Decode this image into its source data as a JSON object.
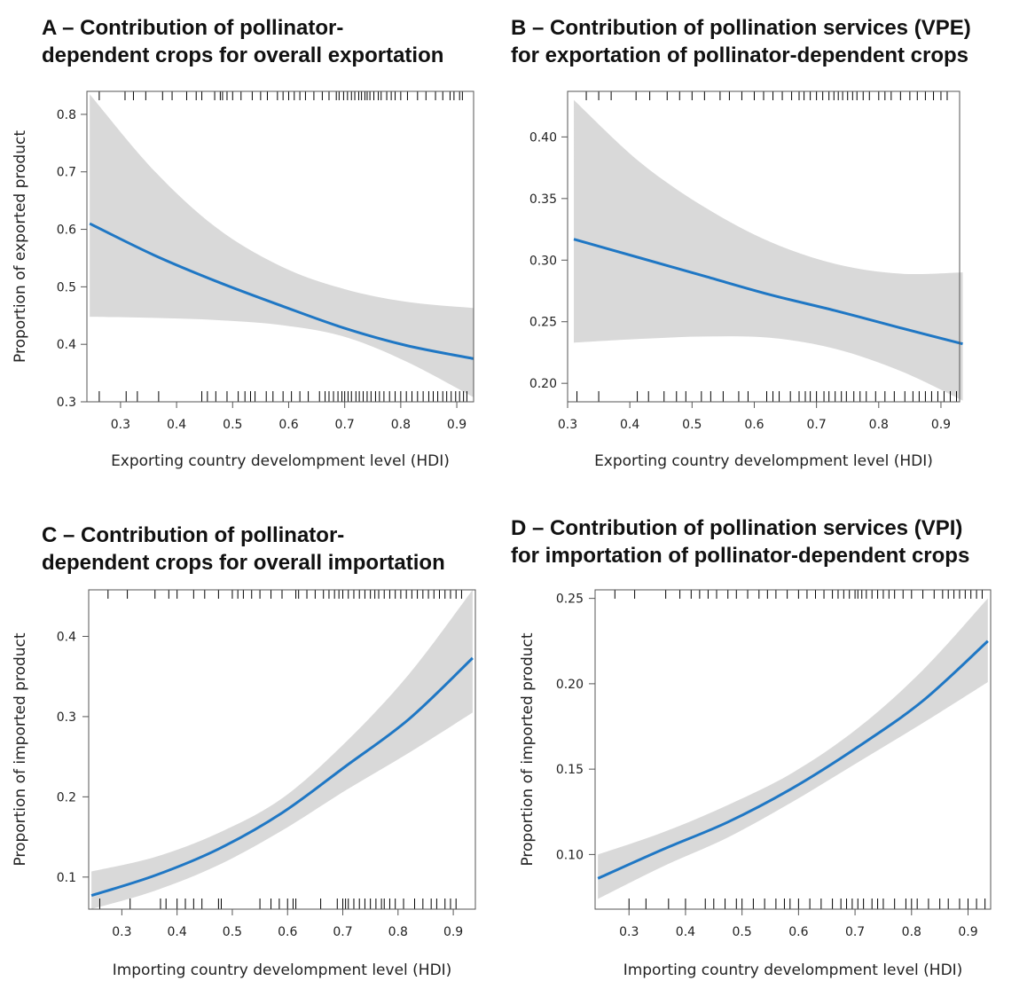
{
  "charts": [
    {
      "id": "A",
      "title_line1": "A – Contribution of pollinator-",
      "title_line2": "dependent crops for overall exportation",
      "chart_data": {
        "type": "line",
        "xlabel": "Exporting country develompment level (HDI)",
        "ylabel": "Proportion of exported product",
        "xlim": [
          0.24,
          0.93
        ],
        "ylim": [
          0.3,
          0.84
        ],
        "x_ticks": [
          "0.3",
          "0.4",
          "0.5",
          "0.6",
          "0.7",
          "0.8",
          "0.9"
        ],
        "y_ticks": [
          "0.3",
          "0.4",
          "0.5",
          "0.6",
          "0.7",
          "0.8"
        ],
        "series": [
          {
            "x": [
              0.245,
              0.36,
              0.475,
              0.59,
              0.7,
              0.81,
              0.93
            ],
            "y": [
              0.61,
              0.555,
              0.508,
              0.466,
              0.428,
              0.398,
              0.375
            ],
            "lower": [
              0.448,
              0.446,
              0.442,
              0.433,
              0.413,
              0.37,
              0.308
            ],
            "upper": [
              0.835,
              0.702,
              0.6,
              0.534,
              0.496,
              0.474,
              0.463
            ]
          }
        ],
        "rug_top": [
          0.262,
          0.308,
          0.323,
          0.345,
          0.375,
          0.392,
          0.418,
          0.435,
          0.445,
          0.468,
          0.478,
          0.482,
          0.49,
          0.5,
          0.515,
          0.535,
          0.55,
          0.562,
          0.58,
          0.59,
          0.6,
          0.61,
          0.62,
          0.63,
          0.645,
          0.66,
          0.672,
          0.685,
          0.69,
          0.698,
          0.705,
          0.712,
          0.718,
          0.725,
          0.73,
          0.736,
          0.74,
          0.745,
          0.752,
          0.76,
          0.765,
          0.775,
          0.783,
          0.79,
          0.8,
          0.812,
          0.83,
          0.845,
          0.862,
          0.875,
          0.888,
          0.895,
          0.905,
          0.91
        ],
        "rug_bottom": [
          0.262,
          0.31,
          0.33,
          0.368,
          0.445,
          0.455,
          0.47,
          0.49,
          0.51,
          0.522,
          0.532,
          0.54,
          0.56,
          0.572,
          0.59,
          0.605,
          0.62,
          0.635,
          0.655,
          0.665,
          0.672,
          0.68,
          0.688,
          0.695,
          0.7,
          0.706,
          0.712,
          0.72,
          0.726,
          0.733,
          0.74,
          0.747,
          0.755,
          0.762,
          0.77,
          0.78,
          0.79,
          0.8,
          0.81,
          0.82,
          0.83,
          0.84,
          0.85,
          0.858,
          0.866,
          0.875,
          0.882,
          0.89,
          0.898,
          0.905,
          0.912,
          0.918
        ]
      }
    },
    {
      "id": "B",
      "title_line1": "B – Contribution of pollination services (VPE)",
      "title_line2": "for exportation of pollinator-dependent crops",
      "chart_data": {
        "type": "line",
        "xlabel": "Exporting country develompment level (HDI)",
        "ylabel": "",
        "xlim": [
          0.3,
          0.93
        ],
        "ylim": [
          0.185,
          0.437
        ],
        "x_ticks": [
          "0.3",
          "0.4",
          "0.5",
          "0.6",
          "0.7",
          "0.8",
          "0.9"
        ],
        "y_ticks": [
          "0.20",
          "0.25",
          "0.30",
          "0.35",
          "0.40"
        ],
        "series": [
          {
            "x": [
              0.31,
              0.415,
              0.52,
              0.625,
              0.73,
              0.835,
              0.935
            ],
            "y": [
              0.317,
              0.302,
              0.287,
              0.272,
              0.259,
              0.245,
              0.232
            ],
            "lower": [
              0.233,
              0.236,
              0.238,
              0.237,
              0.228,
              0.21,
              0.186
            ],
            "upper": [
              0.43,
              0.38,
              0.343,
              0.315,
              0.297,
              0.289,
              0.29
            ]
          }
        ],
        "rug_top": [
          0.33,
          0.35,
          0.37,
          0.41,
          0.432,
          0.46,
          0.48,
          0.5,
          0.52,
          0.545,
          0.56,
          0.58,
          0.6,
          0.615,
          0.63,
          0.645,
          0.66,
          0.672,
          0.68,
          0.69,
          0.7,
          0.71,
          0.72,
          0.728,
          0.735,
          0.742,
          0.75,
          0.758,
          0.765,
          0.775,
          0.785,
          0.8,
          0.81,
          0.82,
          0.835,
          0.85,
          0.862,
          0.875,
          0.888,
          0.9,
          0.91
        ],
        "rug_bottom": [
          0.315,
          0.35,
          0.412,
          0.43,
          0.455,
          0.475,
          0.49,
          0.515,
          0.53,
          0.55,
          0.575,
          0.59,
          0.62,
          0.63,
          0.64,
          0.658,
          0.672,
          0.682,
          0.69,
          0.7,
          0.712,
          0.72,
          0.73,
          0.74,
          0.748,
          0.76,
          0.77,
          0.78,
          0.795,
          0.81,
          0.825,
          0.842,
          0.855,
          0.865,
          0.875,
          0.885,
          0.895,
          0.905,
          0.915,
          0.925
        ]
      }
    },
    {
      "id": "C",
      "title_line1": "C – Contribution of pollinator-",
      "title_line2": "dependent crops for overall importation",
      "chart_data": {
        "type": "line",
        "xlabel": "Importing country develompment level (HDI)",
        "ylabel": "Proportion of imported product",
        "xlim": [
          0.24,
          0.94
        ],
        "ylim": [
          0.06,
          0.458
        ],
        "x_ticks": [
          "0.3",
          "0.4",
          "0.5",
          "0.6",
          "0.7",
          "0.8",
          "0.9"
        ],
        "y_ticks": [
          "0.1",
          "0.2",
          "0.3",
          "0.4"
        ],
        "series": [
          {
            "x": [
              0.245,
              0.36,
              0.475,
              0.59,
              0.705,
              0.82,
              0.935
            ],
            "y": [
              0.077,
              0.102,
              0.135,
              0.18,
              0.238,
              0.297,
              0.373
            ],
            "lower": [
              0.06,
              0.083,
              0.115,
              0.158,
              0.208,
              0.255,
              0.305
            ],
            "upper": [
              0.107,
              0.125,
              0.155,
              0.198,
              0.268,
              0.353,
              0.458
            ]
          }
        ],
        "rug_top": [
          0.275,
          0.31,
          0.36,
          0.385,
          0.4,
          0.43,
          0.45,
          0.475,
          0.5,
          0.51,
          0.52,
          0.535,
          0.55,
          0.57,
          0.59,
          0.615,
          0.62,
          0.635,
          0.65,
          0.665,
          0.675,
          0.685,
          0.693,
          0.7,
          0.71,
          0.72,
          0.73,
          0.74,
          0.75,
          0.758,
          0.765,
          0.775,
          0.785,
          0.795,
          0.805,
          0.815,
          0.825,
          0.835,
          0.845,
          0.855,
          0.865,
          0.875,
          0.885,
          0.895,
          0.905,
          0.915
        ],
        "rug_bottom": [
          0.26,
          0.315,
          0.37,
          0.38,
          0.4,
          0.415,
          0.43,
          0.445,
          0.475,
          0.48,
          0.55,
          0.57,
          0.585,
          0.6,
          0.61,
          0.615,
          0.66,
          0.69,
          0.7,
          0.705,
          0.71,
          0.72,
          0.73,
          0.74,
          0.75,
          0.76,
          0.77,
          0.775,
          0.785,
          0.795,
          0.81,
          0.83,
          0.845,
          0.86,
          0.87,
          0.885,
          0.895,
          0.905
        ]
      }
    },
    {
      "id": "D",
      "title_line1": "D – Contribution of pollination services (VPI)",
      "title_line2": "for importation of pollinator-dependent crops",
      "chart_data": {
        "type": "line",
        "xlabel": "Importing country develompment level (HDI)",
        "ylabel": "Proportion of imported product",
        "xlim": [
          0.24,
          0.94
        ],
        "ylim": [
          0.068,
          0.255
        ],
        "x_ticks": [
          "0.3",
          "0.4",
          "0.5",
          "0.6",
          "0.7",
          "0.8",
          "0.9"
        ],
        "y_ticks": [
          "0.10",
          "0.15",
          "0.20",
          "0.25"
        ],
        "series": [
          {
            "x": [
              0.245,
              0.36,
              0.475,
              0.59,
              0.705,
              0.82,
              0.935
            ],
            "y": [
              0.086,
              0.103,
              0.119,
              0.139,
              0.163,
              0.19,
              0.225
            ],
            "lower": [
              0.074,
              0.093,
              0.11,
              0.131,
              0.154,
              0.177,
              0.201
            ],
            "upper": [
              0.1,
              0.113,
              0.129,
              0.148,
              0.174,
              0.208,
              0.25
            ]
          }
        ],
        "rug_top": [
          0.275,
          0.31,
          0.365,
          0.39,
          0.41,
          0.425,
          0.44,
          0.455,
          0.475,
          0.49,
          0.51,
          0.53,
          0.545,
          0.56,
          0.58,
          0.6,
          0.615,
          0.63,
          0.645,
          0.66,
          0.67,
          0.68,
          0.69,
          0.7,
          0.705,
          0.712,
          0.72,
          0.73,
          0.74,
          0.75,
          0.76,
          0.77,
          0.785,
          0.8,
          0.82,
          0.84,
          0.855,
          0.865,
          0.875,
          0.885,
          0.895,
          0.905,
          0.915,
          0.925
        ],
        "rug_bottom": [
          0.3,
          0.33,
          0.37,
          0.4,
          0.435,
          0.45,
          0.47,
          0.49,
          0.5,
          0.52,
          0.54,
          0.56,
          0.575,
          0.585,
          0.6,
          0.62,
          0.64,
          0.66,
          0.675,
          0.685,
          0.695,
          0.705,
          0.715,
          0.73,
          0.74,
          0.75,
          0.77,
          0.79,
          0.8,
          0.81,
          0.83,
          0.85,
          0.865,
          0.885,
          0.9,
          0.915,
          0.93
        ]
      }
    }
  ],
  "style": {
    "line_color": "#1f77c4",
    "band_color": "#d9d9d9",
    "axis_color": "#555555",
    "rug_color": "#000000"
  }
}
